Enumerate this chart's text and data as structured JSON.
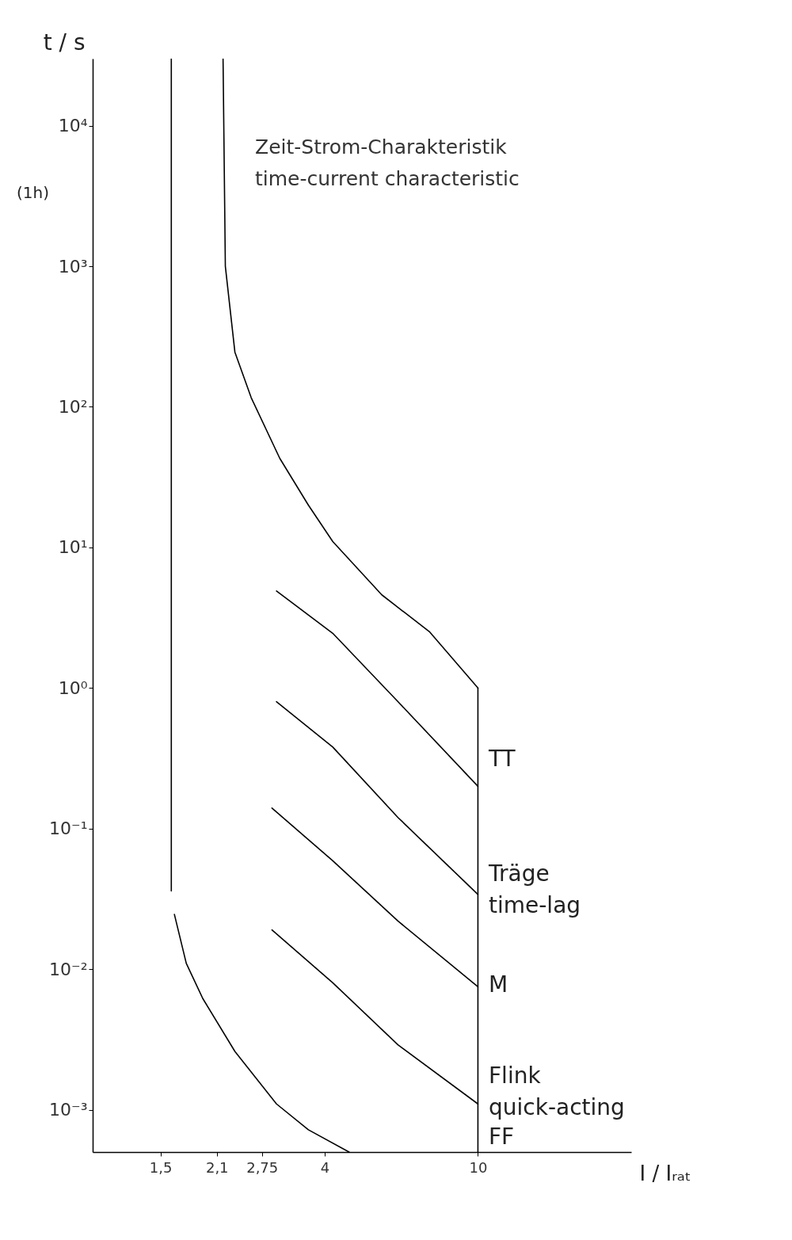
{
  "chart_data": {
    "type": "line",
    "title": "Zeit-Strom-Charakteristik",
    "subtitle": "time-current characteristic",
    "xlabel": "I / Iᵣₐₜ",
    "ylabel": "t / s",
    "log": "xy",
    "grid": false,
    "marker": "none",
    "line_style": "solid",
    "xlim": [
      1,
      25
    ],
    "ylim": [
      0.0005,
      30000
    ],
    "xticks": [
      {
        "value": 1.5,
        "label": "1,5"
      },
      {
        "value": 2.1,
        "label": "2,1"
      },
      {
        "value": 2.75,
        "label": "2,75"
      },
      4,
      10
    ],
    "yticks": [
      {
        "value": 0.001,
        "label": "10⁻³"
      },
      {
        "value": 0.01,
        "label": "10⁻²"
      },
      {
        "value": 0.1,
        "label": "10⁻¹"
      },
      {
        "value": 1,
        "label": "10⁰"
      },
      {
        "value": 10,
        "label": "10¹"
      },
      {
        "value": 100,
        "label": "10²"
      },
      {
        "value": 1000,
        "label": "10³"
      },
      {
        "value": 10000,
        "label": "10⁴"
      }
    ],
    "series": [
      {
        "color": "#000000",
        "x": [
          2.18,
          2.21,
          2.34,
          2.58,
          3.06,
          3.63,
          4.2,
          5.63,
          7.5,
          10
        ],
        "values": [
          30000,
          1000,
          245,
          116,
          43,
          20,
          11,
          4.6,
          2.5,
          1
        ]
      },
      {
        "color": "#000000",
        "x": [
          1.6,
          1.6
        ],
        "values": [
          30000,
          0.036
        ]
      },
      {
        "color": "#000000",
        "x": [
          10,
          10
        ],
        "values": [
          1,
          0.0005
        ]
      },
      {
        "color": "#000000",
        "x": [
          3.0,
          4.2,
          6.2,
          10
        ],
        "values": [
          4.9,
          2.45,
          0.8,
          0.2
        ]
      },
      {
        "color": "#000000",
        "x": [
          3.0,
          4.2,
          6.2,
          10
        ],
        "values": [
          0.8,
          0.38,
          0.12,
          0.034
        ]
      },
      {
        "color": "#000000",
        "x": [
          2.92,
          4.2,
          6.2,
          10
        ],
        "values": [
          0.14,
          0.059,
          0.022,
          0.0075
        ]
      },
      {
        "color": "#000000",
        "x": [
          2.92,
          4.2,
          6.2,
          10
        ],
        "values": [
          0.019,
          0.008,
          0.0029,
          0.0011
        ]
      },
      {
        "color": "#000000",
        "x": [
          1.63,
          1.75,
          1.93,
          2.34,
          3.0,
          3.63,
          4.63
        ],
        "values": [
          0.0245,
          0.011,
          0.0062,
          0.0026,
          0.0011,
          0.00072,
          0.0005
        ]
      }
    ],
    "annotations": [
      "(1h)",
      "TT",
      "Träge",
      "time-lag",
      "M",
      "Flink",
      "quick-acting",
      "FF"
    ]
  }
}
